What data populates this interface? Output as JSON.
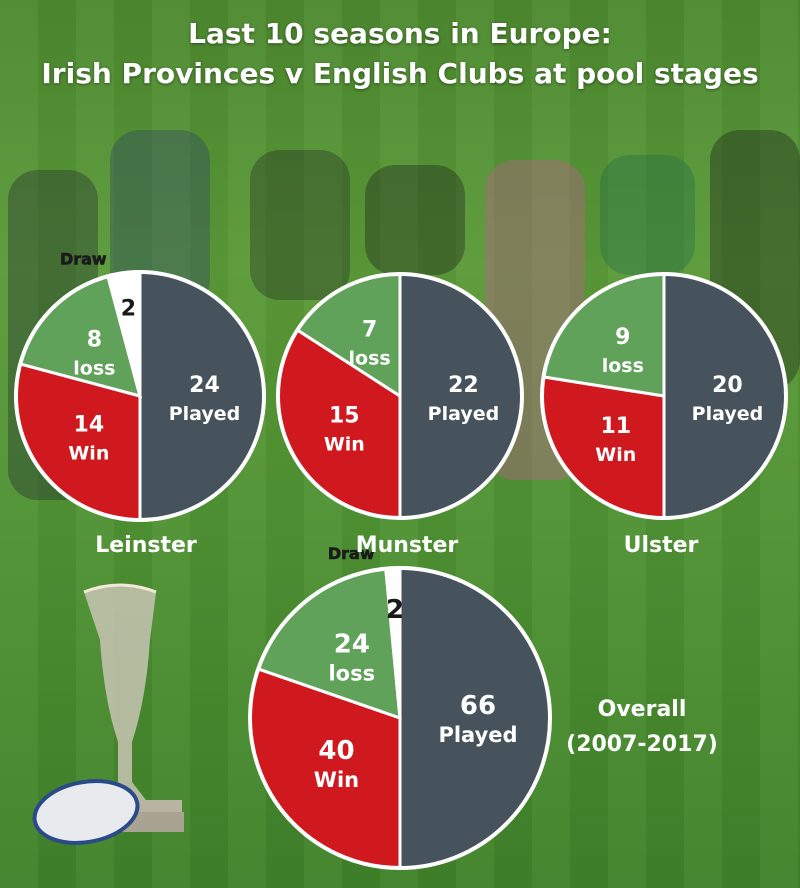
{
  "title_line1": "Last 10 seasons in Europe:",
  "title_line2": "Irish Provinces v English Clubs at pool stages",
  "overall_label_line1": "Overall",
  "overall_label_line2": "(2007-2017)",
  "colors": {
    "played": "#46535c",
    "win": "#d0191f",
    "loss": "#60a25a",
    "draw": "#ffffff"
  },
  "chart_data": [
    {
      "type": "pie",
      "name": "Leinster",
      "slices": [
        {
          "key": "played",
          "value": 24,
          "label": "Played"
        },
        {
          "key": "win",
          "value": 14,
          "label": "Win"
        },
        {
          "key": "loss",
          "value": 8,
          "label": "loss"
        },
        {
          "key": "draw",
          "value": 2,
          "label": "",
          "callout": "Draw"
        }
      ]
    },
    {
      "type": "pie",
      "name": "Munster",
      "slices": [
        {
          "key": "played",
          "value": 22,
          "label": "Played"
        },
        {
          "key": "win",
          "value": 15,
          "label": "Win"
        },
        {
          "key": "loss",
          "value": 7,
          "label": "loss"
        }
      ]
    },
    {
      "type": "pie",
      "name": "Ulster",
      "slices": [
        {
          "key": "played",
          "value": 20,
          "label": "Played"
        },
        {
          "key": "win",
          "value": 11,
          "label": "Win"
        },
        {
          "key": "loss",
          "value": 9,
          "label": "loss"
        }
      ]
    },
    {
      "type": "pie",
      "name": "",
      "slices": [
        {
          "key": "played",
          "value": 66,
          "label": "Played"
        },
        {
          "key": "win",
          "value": 40,
          "label": "Win"
        },
        {
          "key": "loss",
          "value": 24,
          "label": "loss"
        },
        {
          "key": "draw",
          "value": 2,
          "label": "",
          "callout": "Draw"
        }
      ]
    }
  ]
}
